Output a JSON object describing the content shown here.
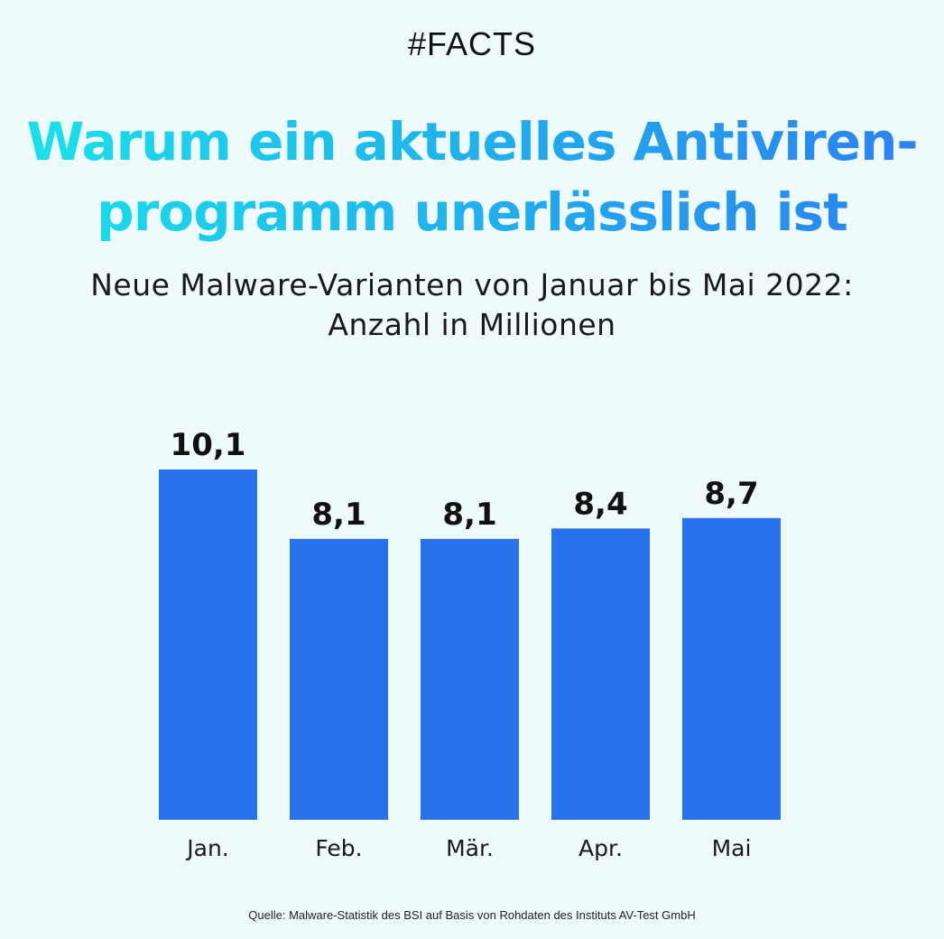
{
  "header": {
    "tag": "#FACTS",
    "title_line1": "Warum ein aktuelles Antiviren-",
    "title_line2": "programm unerlässlich ist",
    "subtitle_line1": "Neue Malware-Varianten von Januar bis Mai 2022:",
    "subtitle_line2": "Anzahl in Millionen"
  },
  "colors": {
    "bar": "#2872ee",
    "title_gradient_start": "#19e3ea",
    "title_gradient_end": "#2c7ff0",
    "background": "#eefafb"
  },
  "chart_data": {
    "type": "bar",
    "categories": [
      "Jan.",
      "Feb.",
      "Mär.",
      "Apr.",
      "Mai"
    ],
    "values": [
      10.1,
      8.1,
      8.1,
      8.4,
      8.7
    ],
    "value_labels": [
      "10,1",
      "8,1",
      "8,1",
      "8,4",
      "8,7"
    ],
    "title": "Neue Malware-Varianten von Januar bis Mai 2022: Anzahl in Millionen",
    "xlabel": "",
    "ylabel": "",
    "ylim": [
      0,
      10.1
    ],
    "grid": false,
    "legend": "none"
  },
  "footer": {
    "source": "Quelle: Malware-Statistik des BSI auf Basis von Rohdaten des Instituts AV-Test GmbH"
  }
}
